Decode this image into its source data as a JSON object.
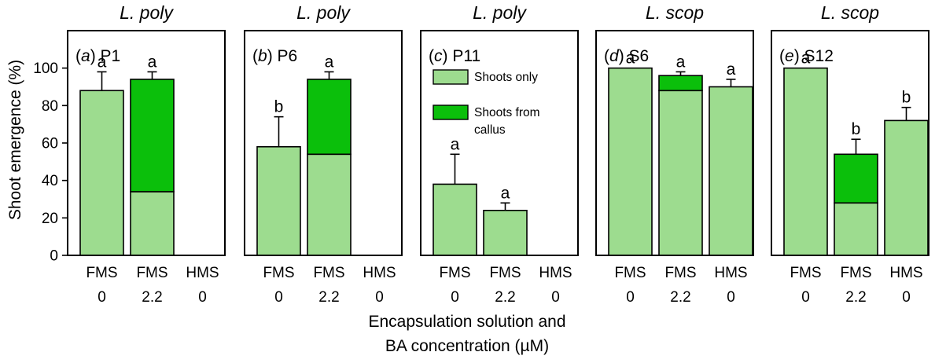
{
  "chart_data": {
    "type": "bar",
    "ylabel": "Shoot emergence (%)",
    "xlabel": [
      "Encapsulation solution and",
      "BA concentration (µM)"
    ],
    "ylim": [
      0,
      120
    ],
    "yticks": [
      0,
      20,
      40,
      60,
      80,
      100
    ],
    "categories": [
      {
        "solution": "FMS",
        "ba": "0"
      },
      {
        "solution": "FMS",
        "ba": "2.2"
      },
      {
        "solution": "HMS",
        "ba": "0"
      }
    ],
    "legend": {
      "placement": "inside panel c, top",
      "items": [
        {
          "name": "Shoots only",
          "color": "#9ddc8f"
        },
        {
          "name": "Shoots from\ncallus",
          "color": "#0bbf0b"
        }
      ]
    },
    "colors": {
      "shoots_only": "#9ddc8f",
      "shoots_from_callus": "#0bbf0b"
    },
    "series": [
      "Shoots only",
      "Shoots from callus"
    ],
    "panels": [
      {
        "title": "L. poly",
        "label_letter": "a",
        "label_text": "P1",
        "bars": [
          {
            "shoots_only": 88,
            "shoots_from_callus": 0,
            "total": 88,
            "error": 10,
            "letter": "a"
          },
          {
            "shoots_only": 34,
            "shoots_from_callus": 60,
            "total": 94,
            "error": 4,
            "letter": "a"
          },
          null
        ]
      },
      {
        "title": "L. poly",
        "label_letter": "b",
        "label_text": "P6",
        "bars": [
          {
            "shoots_only": 58,
            "shoots_from_callus": 0,
            "total": 58,
            "error": 16,
            "letter": "b"
          },
          {
            "shoots_only": 54,
            "shoots_from_callus": 40,
            "total": 94,
            "error": 4,
            "letter": "a"
          },
          null
        ]
      },
      {
        "title": "L. poly",
        "label_letter": "c",
        "label_text": "P11",
        "bars": [
          {
            "shoots_only": 38,
            "shoots_from_callus": 0,
            "total": 38,
            "error": 16,
            "letter": "a"
          },
          {
            "shoots_only": 24,
            "shoots_from_callus": 0,
            "total": 24,
            "error": 4,
            "letter": "a"
          },
          null
        ]
      },
      {
        "title": "L. scop",
        "label_letter": "d",
        "label_text": "S6",
        "bars": [
          {
            "shoots_only": 100,
            "shoots_from_callus": 0,
            "total": 100,
            "error": 0,
            "letter": "a"
          },
          {
            "shoots_only": 88,
            "shoots_from_callus": 8,
            "total": 96,
            "error": 2,
            "letter": "a"
          },
          {
            "shoots_only": 90,
            "shoots_from_callus": 0,
            "total": 90,
            "error": 4,
            "letter": "a"
          }
        ]
      },
      {
        "title": "L. scop",
        "label_letter": "e",
        "label_text": "S12",
        "bars": [
          {
            "shoots_only": 100,
            "shoots_from_callus": 0,
            "total": 100,
            "error": 0,
            "letter": "a"
          },
          {
            "shoots_only": 28,
            "shoots_from_callus": 26,
            "total": 54,
            "error": 8,
            "letter": "b"
          },
          {
            "shoots_only": 72,
            "shoots_from_callus": 0,
            "total": 72,
            "error": 7,
            "letter": "b"
          }
        ]
      }
    ]
  }
}
